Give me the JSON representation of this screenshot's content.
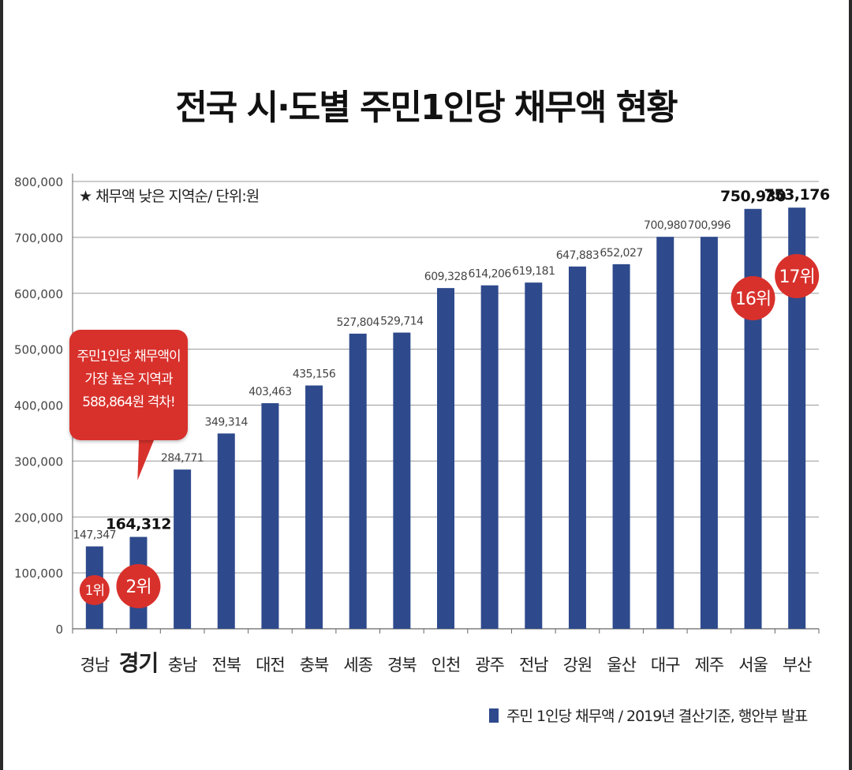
{
  "title": "전국 시·도별 주민1인당 채무액 현황",
  "note": "★ 채무액 낮은 지역순/ 단위:원",
  "callout": {
    "lines": [
      "주민1인당 채무액이",
      "가장 높은 지역과",
      "588,864원 격차!"
    ]
  },
  "legend": {
    "text": "주민 1인당 채무액  / 2019년 결산기준, 행안부 발표"
  },
  "colors": {
    "bar": "#2e4a8c",
    "badge": "#d8312c",
    "grid": "#9a9a9a"
  },
  "chart_data": {
    "type": "bar",
    "categories": [
      "경남",
      "경기",
      "충남",
      "전북",
      "대전",
      "충북",
      "세종",
      "경북",
      "인천",
      "광주",
      "전남",
      "강원",
      "울산",
      "대구",
      "제주",
      "서울",
      "부산"
    ],
    "values": [
      147347,
      164312,
      284771,
      349314,
      403463,
      435156,
      527804,
      529714,
      609328,
      614206,
      619181,
      647883,
      652027,
      700980,
      700996,
      750930,
      753176
    ],
    "value_labels": [
      "147,347",
      "164,312",
      "284,771",
      "349,314",
      "403,463",
      "435,156",
      "527,804",
      "529,714",
      "609,328",
      "614,206",
      "619,181",
      "647,883",
      "652,027",
      "700,980",
      "700,996",
      "750,930",
      "753,176"
    ],
    "y_ticks": [
      0,
      100000,
      200000,
      300000,
      400000,
      500000,
      600000,
      700000,
      800000
    ],
    "y_tick_labels": [
      "0",
      "100,000",
      "200,000",
      "300,000",
      "400,000",
      "500,000",
      "600,000",
      "700,000",
      "800,000"
    ],
    "ylim": [
      0,
      800000
    ],
    "grid": true,
    "highlighted_category": "경기",
    "bold_value_labels": [
      "164,312",
      "750,930",
      "753,176"
    ],
    "rank_badges": [
      {
        "category": "경남",
        "label": "1위"
      },
      {
        "category": "경기",
        "label": "2위"
      },
      {
        "category": "서울",
        "label": "16위"
      },
      {
        "category": "부산",
        "label": "17위"
      }
    ]
  }
}
